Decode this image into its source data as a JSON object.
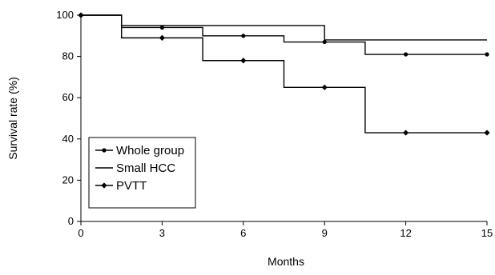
{
  "chart_data": {
    "type": "line",
    "title": "",
    "xlabel": "Months",
    "ylabel": "Survival rate (%)",
    "xlim": [
      0,
      15
    ],
    "ylim": [
      0,
      100
    ],
    "xticks": [
      0,
      3,
      6,
      9,
      12,
      15
    ],
    "yticks": [
      0,
      20,
      40,
      60,
      80,
      100
    ],
    "grid": false,
    "legend_position": "bottom-left",
    "series": [
      {
        "name": "Whole group",
        "step": true,
        "marker": "circle",
        "x": [
          0,
          1.5,
          4.5,
          7.5,
          10.5,
          15
        ],
        "y": [
          100,
          94,
          90,
          87,
          81,
          81
        ],
        "marker_x": [
          0,
          3,
          6,
          9,
          12,
          15
        ],
        "marker_y": [
          100,
          94,
          90,
          87,
          81,
          81
        ]
      },
      {
        "name": "Small HCC",
        "step": true,
        "marker": "none",
        "x": [
          0,
          1.5,
          9,
          15
        ],
        "y": [
          100,
          95,
          88,
          88
        ]
      },
      {
        "name": "PVTT",
        "step": true,
        "marker": "diamond",
        "x": [
          0,
          1.5,
          4.5,
          7.5,
          10.5,
          15
        ],
        "y": [
          100,
          89,
          78,
          65,
          43,
          43
        ],
        "marker_x": [
          0,
          3,
          6,
          9,
          12,
          15
        ],
        "marker_y": [
          100,
          89,
          78,
          65,
          43,
          43
        ]
      }
    ]
  }
}
